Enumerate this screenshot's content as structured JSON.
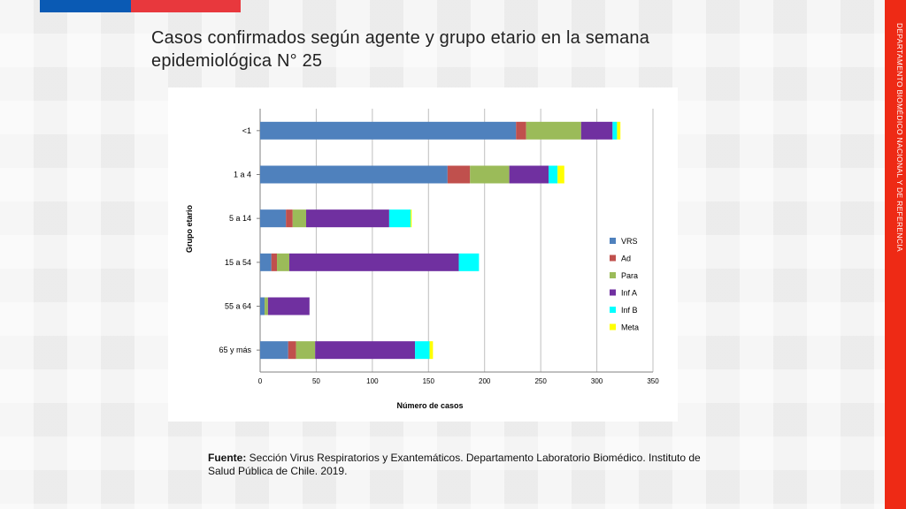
{
  "slide": {
    "title": "Casos confirmados según agente y grupo etario en la semana epidemiológica N°   25",
    "side_label": "DEPARTAMENTO BIOMÉDICO NACIONAL Y DE REFERENCIA",
    "source_label": "Fuente:",
    "source_text": " Sección Virus Respiratorios y Exantemáticos. Departamento Laboratorio Biomédico. Instituto de Salud Pública de Chile. 2019.",
    "colors": {
      "flag_blue": "#0a5ab4",
      "flag_red": "#e8383d",
      "side_strip": "#ee2a15"
    }
  },
  "chart_data": {
    "type": "bar",
    "orientation": "horizontal",
    "stacked": true,
    "xlabel": "Número de casos",
    "ylabel": "Grupo etario",
    "xlim": [
      0,
      350
    ],
    "xticks": [
      0,
      50,
      100,
      150,
      200,
      250,
      300,
      350
    ],
    "grid": true,
    "legend_position": "right",
    "categories": [
      "<1",
      "1 a 4",
      "5 a 14",
      "15 a 54",
      "55 a 64",
      "65 y más"
    ],
    "series": [
      {
        "name": "VRS",
        "color": "#4f81bd",
        "values": [
          228,
          167,
          23,
          10,
          4,
          25
        ]
      },
      {
        "name": "Ad",
        "color": "#c0504d",
        "values": [
          9,
          20,
          6,
          5,
          0,
          7
        ]
      },
      {
        "name": "Para",
        "color": "#9bbb59",
        "values": [
          49,
          35,
          12,
          11,
          3,
          17
        ]
      },
      {
        "name": "Inf A",
        "color": "#7030a0",
        "values": [
          28,
          35,
          74,
          151,
          37,
          89
        ]
      },
      {
        "name": "Inf B",
        "color": "#00ffff",
        "values": [
          4,
          8,
          19,
          18,
          0,
          13
        ]
      },
      {
        "name": "Meta",
        "color": "#ffff00",
        "values": [
          3,
          6,
          1,
          0,
          0,
          3
        ]
      }
    ]
  }
}
